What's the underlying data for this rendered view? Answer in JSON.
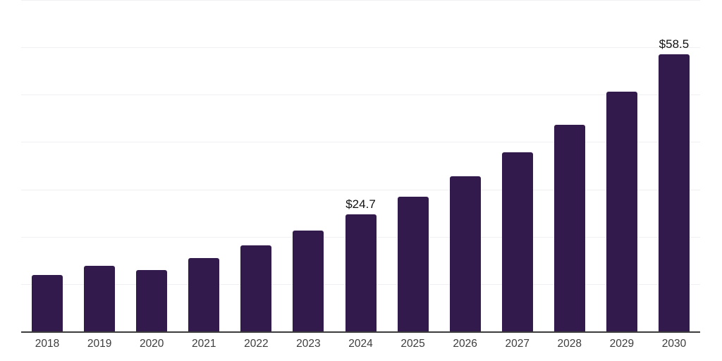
{
  "chart_data": {
    "type": "bar",
    "categories": [
      "2018",
      "2019",
      "2020",
      "2021",
      "2022",
      "2023",
      "2024",
      "2025",
      "2026",
      "2027",
      "2028",
      "2029",
      "2030"
    ],
    "values": [
      11.9,
      13.9,
      12.9,
      15.5,
      18.2,
      21.3,
      24.7,
      28.4,
      32.7,
      37.9,
      43.7,
      50.7,
      58.5
    ],
    "data_labels": [
      {
        "category": "2024",
        "text": "$24.7"
      },
      {
        "category": "2030",
        "text": "$58.5"
      }
    ],
    "ylim": [
      0,
      70
    ],
    "gridline_step": 10,
    "grid": "horizontal-only",
    "legend": "none",
    "y_tick_labels_visible": false,
    "colors": {
      "bar": "#331A4D",
      "gridline": "#F0F0F2",
      "axis_line": "#3C3C3C",
      "x_tick_label": "#3D3D3D",
      "data_label": "#111111",
      "background": "#FFFFFF"
    }
  }
}
